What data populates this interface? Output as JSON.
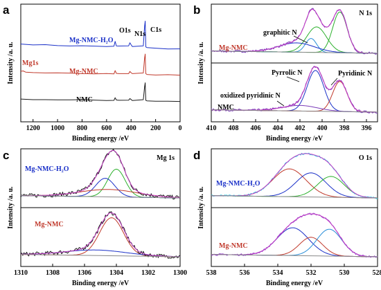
{
  "chart_data": [
    {
      "panel": "a",
      "type": "line",
      "xlabel": "Binding energy /eV",
      "ylabel": "Intensity /a. u.",
      "xlim": [
        1300,
        0
      ],
      "x_ticks": [
        1200,
        1000,
        800,
        600,
        400,
        200,
        0
      ],
      "annotations": [
        "Mg-NMC-H₂O",
        "Mg-NMC",
        "NMC",
        "Mg1s",
        "O1s",
        "N1s",
        "C1s"
      ],
      "series": [
        {
          "name": "Mg-NMC-H₂O",
          "color": "#1a30c8",
          "offset": 2,
          "x": [
            1300,
            1200,
            1100,
            1000,
            900,
            800,
            700,
            600,
            540,
            530,
            520,
            500,
            420,
            410,
            400,
            390,
            300,
            290,
            285,
            282,
            280,
            270,
            200,
            100,
            0
          ],
          "y": [
            0.6,
            0.55,
            0.5,
            0.45,
            0.42,
            0.4,
            0.38,
            0.35,
            0.35,
            0.85,
            0.4,
            0.38,
            0.4,
            0.7,
            0.55,
            0.35,
            0.4,
            2.4,
            3.0,
            1.5,
            0.3,
            0.2,
            0.15,
            0.12,
            0.1
          ]
        },
        {
          "name": "Mg-NMC",
          "color": "#c0392b",
          "offset": 1,
          "x": [
            1300,
            1300,
            1280,
            1260,
            1200,
            1100,
            1000,
            900,
            800,
            700,
            600,
            540,
            530,
            520,
            500,
            420,
            410,
            400,
            390,
            300,
            290,
            285,
            282,
            280,
            270,
            200,
            100,
            0
          ],
          "y": [
            0.5,
            0.5,
            0.5,
            0.4,
            0.35,
            0.32,
            0.3,
            0.28,
            0.27,
            0.25,
            0.24,
            0.24,
            0.6,
            0.3,
            0.26,
            0.27,
            0.45,
            0.35,
            0.24,
            0.3,
            1.9,
            2.3,
            1.0,
            0.25,
            0.18,
            0.14,
            0.12,
            0.1
          ]
        },
        {
          "name": "NMC",
          "color": "#1a1a1a",
          "offset": 0,
          "x": [
            1300,
            1200,
            1100,
            1000,
            900,
            800,
            700,
            600,
            540,
            530,
            520,
            500,
            420,
            410,
            400,
            390,
            300,
            290,
            285,
            282,
            280,
            270,
            200,
            100,
            0
          ],
          "y": [
            0.35,
            0.32,
            0.3,
            0.28,
            0.26,
            0.25,
            0.24,
            0.22,
            0.22,
            0.5,
            0.26,
            0.23,
            0.24,
            0.4,
            0.3,
            0.22,
            0.25,
            1.6,
            2.0,
            0.9,
            0.2,
            0.16,
            0.13,
            0.11,
            0.1
          ]
        }
      ]
    },
    {
      "panel": "b",
      "type": "line",
      "xlabel": "Binding energy /eV",
      "ylabel": "Intensity /a. u.",
      "title": "N 1s",
      "xlim": [
        410,
        395
      ],
      "x_ticks": [
        410,
        408,
        406,
        404,
        402,
        400,
        398,
        396
      ],
      "annotations": [
        "graphitic N",
        "Pyrrolic N",
        "Pyridinic N",
        "oxidized pyridinic N"
      ],
      "subplots": [
        {
          "label": "Mg-NMC",
          "label_color": "#c0392b",
          "components": [
            {
              "name": "Pyridinic N",
              "color": "#2bb02b",
              "center": 398.4,
              "height": 0.88,
              "width": 0.65
            },
            {
              "name": "Pyrrolic N",
              "color": "#2bb02b",
              "center": 400.5,
              "height": 0.55,
              "width": 0.9
            },
            {
              "name": "graphitic N",
              "color": "#2a8fd8",
              "center": 401.0,
              "height": 0.3,
              "width": 0.5
            },
            {
              "name": "oxidized pyridinic N",
              "color": "#1a30c8",
              "center": 402.3,
              "height": 0.2,
              "width": 1.6
            }
          ]
        },
        {
          "label": "NMC",
          "label_color": "#000000",
          "components": [
            {
              "name": "Pyrrolic N",
              "color": "#1a30c8",
              "center": 400.6,
              "height": 0.88,
              "width": 0.75
            },
            {
              "name": "Pyridinic N",
              "color": "#c0392b",
              "center": 398.4,
              "height": 0.65,
              "width": 0.65
            },
            {
              "name": "oxidized pyridinic N",
              "color": "#7a3ab8",
              "center": 402.0,
              "height": 0.12,
              "width": 1.6
            }
          ]
        }
      ]
    },
    {
      "panel": "c",
      "type": "line",
      "xlabel": "Binding energy /eV",
      "ylabel": "Intensity /a. u.",
      "title": "Mg 1s",
      "xlim": [
        1310,
        1300
      ],
      "x_ticks": [
        1310,
        1308,
        1306,
        1304,
        1302,
        1300
      ],
      "subplots": [
        {
          "label": "Mg-NMC-H₂O",
          "label_color": "#1a30c8",
          "components": [
            {
              "name": "",
              "color": "#2bb02b",
              "center": 1304.0,
              "height": 0.6,
              "width": 0.55
            },
            {
              "name": "",
              "color": "#1a30c8",
              "center": 1304.7,
              "height": 0.4,
              "width": 0.6
            },
            {
              "name": "",
              "color": "#c0392b",
              "center": 1304.5,
              "height": 0.16,
              "width": 1.8
            }
          ]
        },
        {
          "label": "Mg-NMC",
          "label_color": "#c0392b",
          "components": [
            {
              "name": "",
              "color": "#c0392b",
              "center": 1304.3,
              "height": 0.82,
              "width": 0.75
            },
            {
              "name": "",
              "color": "#1a30c8",
              "center": 1305.3,
              "height": 0.12,
              "width": 1.9
            }
          ]
        }
      ]
    },
    {
      "panel": "d",
      "type": "line",
      "xlabel": "Binding energy /eV",
      "ylabel": "Intensity /a. u.",
      "title": "O 1s",
      "xlim": [
        538,
        528
      ],
      "x_ticks": [
        538,
        536,
        534,
        532,
        530,
        528
      ],
      "subplots": [
        {
          "label": "Mg-NMC-H₂O",
          "label_color": "#1a30c8",
          "components": [
            {
              "name": "",
              "color": "#c0392b",
              "center": 533.3,
              "height": 0.6,
              "width": 1.0
            },
            {
              "name": "",
              "color": "#1a30c8",
              "center": 532.0,
              "height": 0.52,
              "width": 0.9
            },
            {
              "name": "",
              "color": "#2bb02b",
              "center": 530.8,
              "height": 0.45,
              "width": 0.8
            }
          ]
        },
        {
          "label": "Mg-NMC",
          "label_color": "#c0392b",
          "components": [
            {
              "name": "",
              "color": "#1a30c8",
              "center": 533.1,
              "height": 0.6,
              "width": 0.95
            },
            {
              "name": "",
              "color": "#c0392b",
              "center": 532.0,
              "height": 0.4,
              "width": 0.7
            },
            {
              "name": "",
              "color": "#2a8fd8",
              "center": 530.9,
              "height": 0.58,
              "width": 0.75
            }
          ]
        }
      ]
    }
  ],
  "envelope_color": "#c43cc4"
}
